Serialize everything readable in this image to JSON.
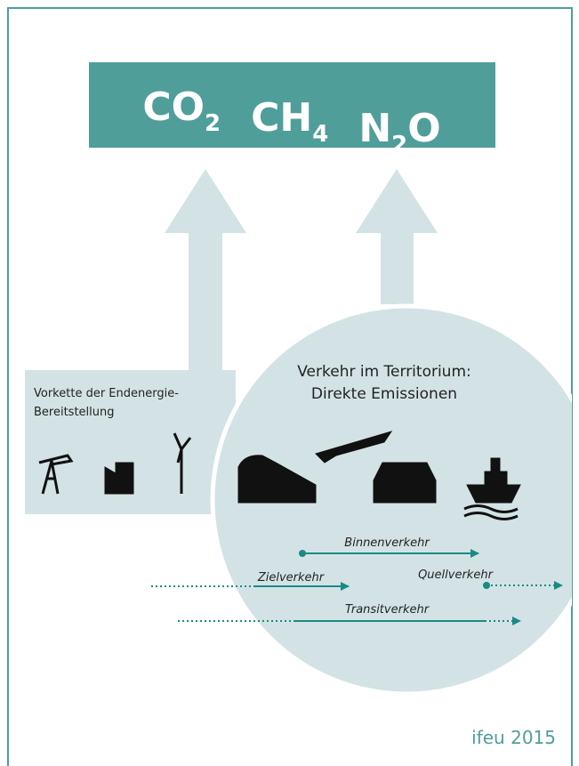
{
  "header": {
    "gases": [
      {
        "base": "CO",
        "sub": "2"
      },
      {
        "base": "CH",
        "sub": "4"
      },
      {
        "base": "N",
        "sub": "2",
        "tail": "O"
      }
    ]
  },
  "upstream": {
    "lines": [
      "Vorkette der Endenergie-",
      "Bereitstellung"
    ]
  },
  "territory": {
    "lines": [
      "Verkehr im Territorium:",
      "Direkte Emissionen"
    ]
  },
  "flows": [
    "Binnenverkehr",
    "Zielverkehr",
    "Quellverkehr",
    "Transitverkehr"
  ],
  "footer": "ifeu 2015"
}
